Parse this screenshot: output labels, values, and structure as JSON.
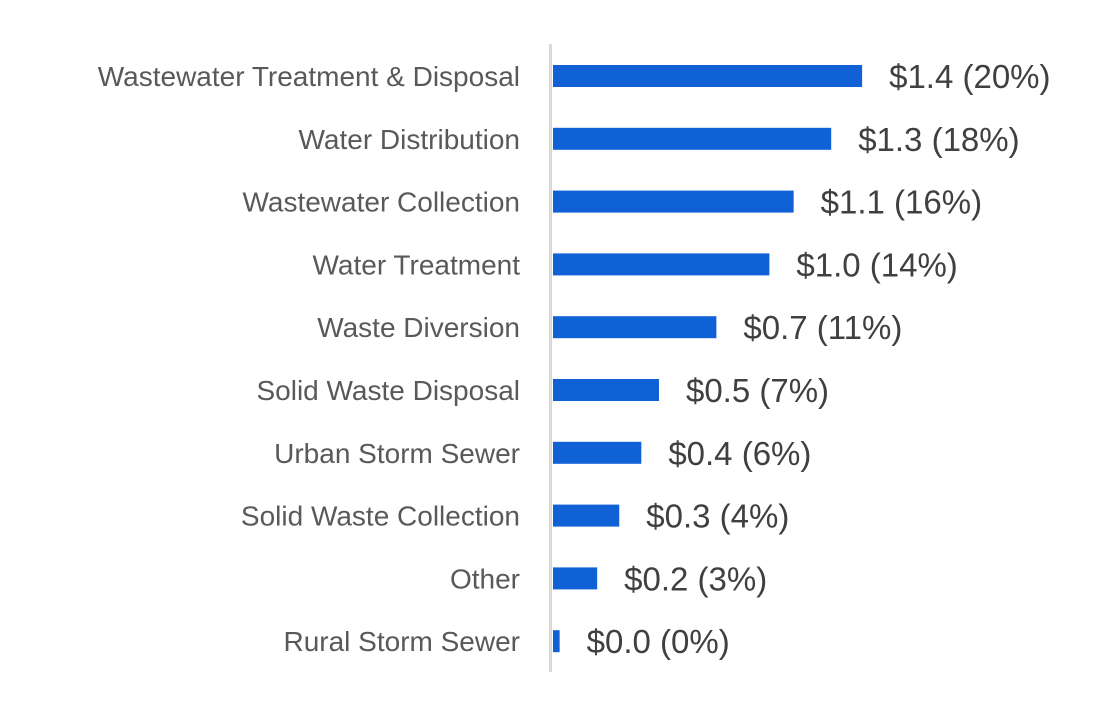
{
  "chart_data": {
    "type": "bar",
    "orientation": "horizontal",
    "title": "",
    "xlabel": "",
    "ylabel": "",
    "categories": [
      "Wastewater Treatment & Disposal",
      "Water Distribution",
      "Wastewater Collection",
      "Water Treatment",
      "Waste Diversion",
      "Solid Waste Disposal",
      "Urban Storm Sewer",
      "Solid Waste Collection",
      "Other",
      "Rural Storm Sewer"
    ],
    "values": [
      1.4,
      1.26,
      1.09,
      0.98,
      0.74,
      0.48,
      0.4,
      0.3,
      0.2,
      0.03
    ],
    "data_labels": [
      "$1.4 (20%)",
      "$1.3 (18%)",
      "$1.1 (16%)",
      "$1.0 (14%)",
      "$0.7 (11%)",
      "$0.5 (7%)",
      "$0.4 (6%)",
      "$0.3 (4%)",
      "$0.2 (3%)",
      "$0.0 (0%)"
    ],
    "xlim": [
      0,
      2.55
    ],
    "grid": false,
    "legend": "none",
    "colors": {
      "bar": "#1060D6",
      "axis": "#D9D9D9",
      "category_text": "#595959",
      "value_text": "#404040"
    }
  }
}
